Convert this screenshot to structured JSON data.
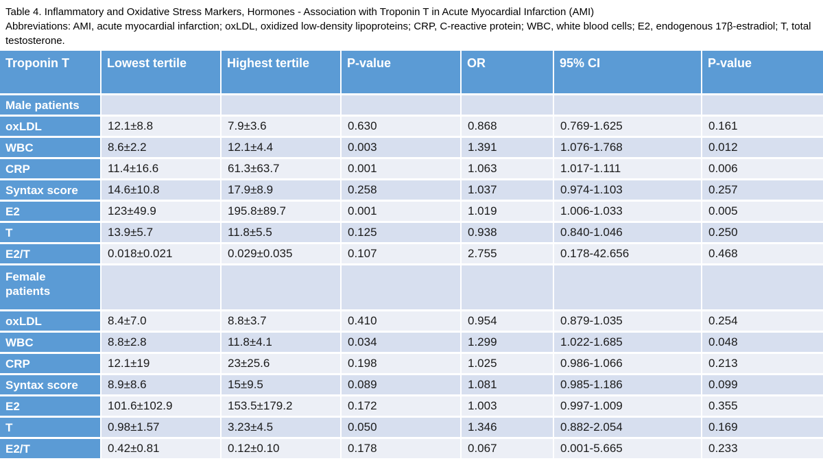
{
  "caption": {
    "title": "Table 4. Inflammatory and Oxidative Stress Markers, Hormones - Association with Troponin T in Acute Myocardial Infarction (AMI)",
    "abbreviations": "Abbreviations: AMI, acute myocardial infarction; oxLDL, oxidized low-density lipoproteins; CRP, C-reactive protein; WBC, white blood cells; E2, endogenous 17β-estradiol; T, total testosterone."
  },
  "colors": {
    "header_blue": "#5b9bd5",
    "band_medium": "#d7dfef",
    "band_light": "#eceff6",
    "grid_line": "#ffffff",
    "header_text": "#ffffff",
    "body_text": "#1a1a1a"
  },
  "table": {
    "columns": [
      "Troponin T",
      "Lowest tertile",
      "Highest tertile",
      "P-value",
      "OR",
      "95% CI",
      "P-value"
    ],
    "sections": [
      {
        "label": "Male patients",
        "rows": [
          {
            "label": "oxLDL",
            "lowest": "12.1±8.8",
            "highest": "7.9±3.6",
            "p1": "0.630",
            "or": "0.868",
            "ci": "0.769-1.625",
            "p2": "0.161"
          },
          {
            "label": "WBC",
            "lowest": "8.6±2.2",
            "highest": "12.1±4.4",
            "p1": "0.003",
            "or": "1.391",
            "ci": "1.076-1.768",
            "p2": "0.012"
          },
          {
            "label": "CRP",
            "lowest": "11.4±16.6",
            "highest": "61.3±63.7",
            "p1": "0.001",
            "or": "1.063",
            "ci": "1.017-1.111",
            "p2": "0.006"
          },
          {
            "label": "Syntax score",
            "lowest": "14.6±10.8",
            "highest": "17.9±8.9",
            "p1": "0.258",
            "or": "1.037",
            "ci": "0.974-1.103",
            "p2": "0.257"
          },
          {
            "label": "E2",
            "lowest": "123±49.9",
            "highest": "195.8±89.7",
            "p1": "0.001",
            "or": "1.019",
            "ci": "1.006-1.033",
            "p2": "0.005"
          },
          {
            "label": "T",
            "lowest": "13.9±5.7",
            "highest": "11.8±5.5",
            "p1": "0.125",
            "or": "0.938",
            "ci": "0.840-1.046",
            "p2": "0.250"
          },
          {
            "label": "E2/T",
            "lowest": "0.018±0.021",
            "highest": "0.029±0.035",
            "p1": "0.107",
            "or": "2.755",
            "ci": "0.178-42.656",
            "p2": "0.468"
          }
        ]
      },
      {
        "label": "Female patients",
        "rows": [
          {
            "label": "oxLDL",
            "lowest": "8.4±7.0",
            "highest": "8.8±3.7",
            "p1": "0.410",
            "or": "0.954",
            "ci": "0.879-1.035",
            "p2": "0.254"
          },
          {
            "label": "WBC",
            "lowest": "8.8±2.8",
            "highest": "11.8±4.1",
            "p1": "0.034",
            "or": "1.299",
            "ci": "1.022-1.685",
            "p2": "0.048"
          },
          {
            "label": "CRP",
            "lowest": "12.1±19",
            "highest": "23±25.6",
            "p1": "0.198",
            "or": "1.025",
            "ci": "0.986-1.066",
            "p2": "0.213"
          },
          {
            "label": "Syntax score",
            "lowest": "8.9±8.6",
            "highest": "15±9.5",
            "p1": "0.089",
            "or": "1.081",
            "ci": "0.985-1.186",
            "p2": "0.099"
          },
          {
            "label": "E2",
            "lowest": "101.6±102.9",
            "highest": "153.5±179.2",
            "p1": "0.172",
            "or": "1.003",
            "ci": "0.997-1.009",
            "p2": "0.355"
          },
          {
            "label": "T",
            "lowest": "0.98±1.57",
            "highest": "3.23±4.5",
            "p1": "0.050",
            "or": "1.346",
            "ci": "0.882-2.054",
            "p2": "0.169"
          },
          {
            "label": "E2/T",
            "lowest": "0.42±0.81",
            "highest": "0.12±0.10",
            "p1": "0.178",
            "or": "0.067",
            "ci": "0.001-5.665",
            "p2": "0.233"
          }
        ]
      }
    ]
  }
}
